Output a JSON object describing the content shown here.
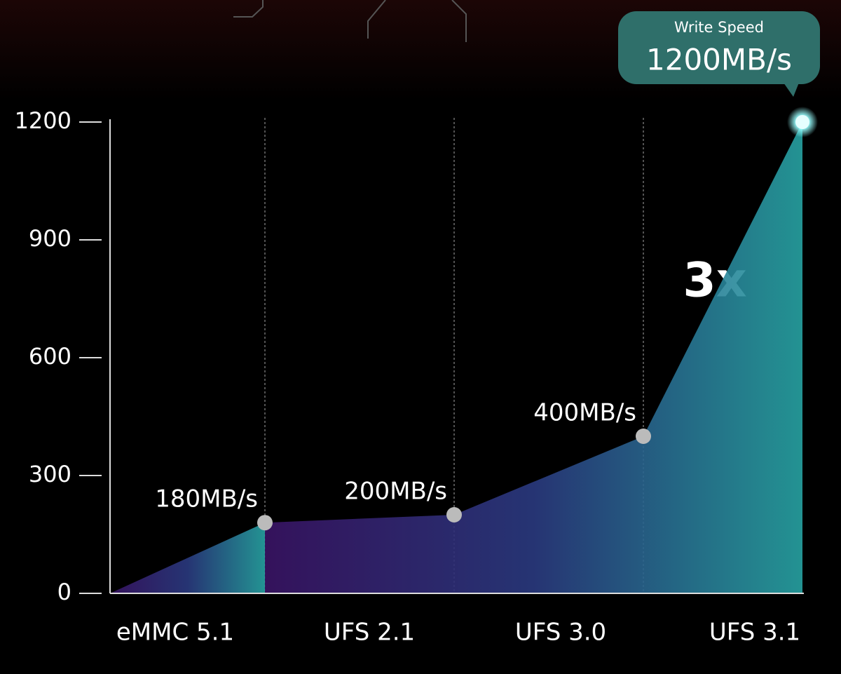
{
  "chart_data": {
    "type": "area",
    "categories": [
      "eMMC 5.1",
      "UFS 2.1",
      "UFS 3.0",
      "UFS 3.1"
    ],
    "values": [
      180,
      200,
      400,
      1200
    ],
    "value_labels": [
      "180MB/s",
      "200MB/s",
      "400MB/s",
      "1200MB/s"
    ],
    "ylim": [
      0,
      1200
    ],
    "yticks": [
      0,
      300,
      600,
      900,
      1200
    ],
    "color": "#2aa8a8",
    "annotations": [
      "Write Speed",
      "3x"
    ]
  }
}
